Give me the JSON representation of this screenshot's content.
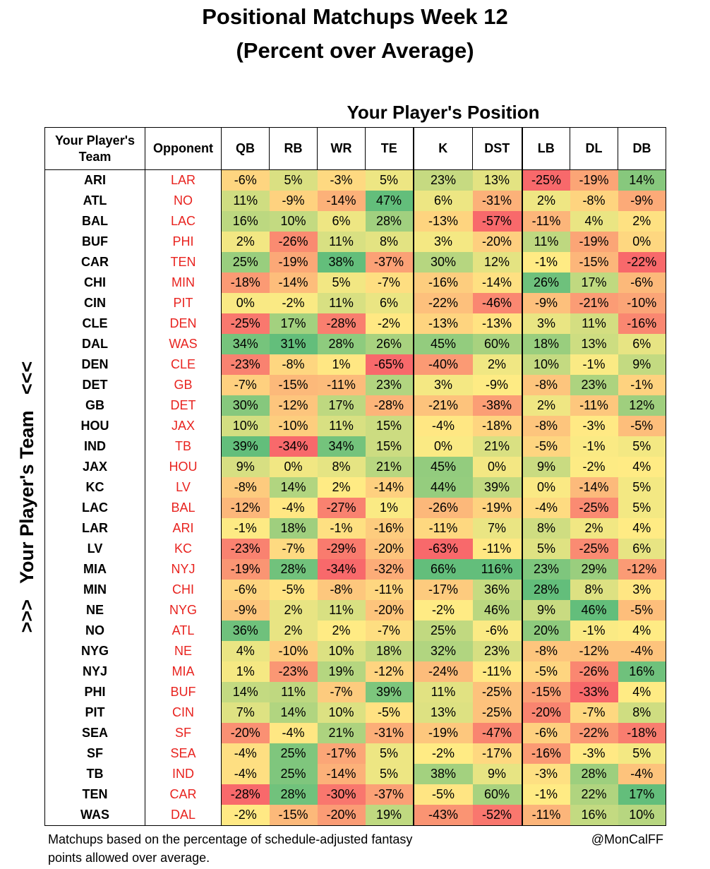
{
  "title_line1": "Positional Matchups Week 12",
  "title_line2": "(Percent over Average)",
  "position_header": "Your Player's Position",
  "side_label": ">>>   Your Player's Team   <<<",
  "footnote_line1": "Matchups based on the percentage of schedule-adjusted fantasy",
  "footnote_line2": "points allowed over average.",
  "credit": "@MonCalFF",
  "colors": {
    "low": "#f8696b",
    "mid": "#ffeb84",
    "high": "#63be7b",
    "opponent_text": "#e8231f"
  },
  "chart_data": {
    "type": "heatmap",
    "columns": [
      "Your Player's Team",
      "Opponent",
      "QB",
      "RB",
      "WR",
      "TE",
      "K",
      "DST",
      "LB",
      "DL",
      "DB"
    ],
    "positions": [
      "QB",
      "RB",
      "WR",
      "TE",
      "K",
      "DST",
      "LB",
      "DL",
      "DB"
    ],
    "rows": [
      {
        "team": "ARI",
        "opp": "LAR",
        "values": [
          -6,
          5,
          -3,
          5,
          23,
          13,
          -25,
          -19,
          14
        ]
      },
      {
        "team": "ATL",
        "opp": "NO",
        "values": [
          11,
          -9,
          -14,
          47,
          6,
          -31,
          2,
          -8,
          -9
        ]
      },
      {
        "team": "BAL",
        "opp": "LAC",
        "values": [
          16,
          10,
          6,
          28,
          -13,
          -57,
          -11,
          4,
          2
        ]
      },
      {
        "team": "BUF",
        "opp": "PHI",
        "values": [
          2,
          -26,
          11,
          8,
          3,
          -20,
          11,
          -19,
          0
        ]
      },
      {
        "team": "CAR",
        "opp": "TEN",
        "values": [
          25,
          -19,
          38,
          -37,
          30,
          12,
          -1,
          -15,
          -22
        ]
      },
      {
        "team": "CHI",
        "opp": "MIN",
        "values": [
          -18,
          -14,
          5,
          -7,
          -16,
          -14,
          26,
          17,
          -6
        ]
      },
      {
        "team": "CIN",
        "opp": "PIT",
        "values": [
          0,
          -2,
          11,
          6,
          -22,
          -46,
          -9,
          -21,
          -10
        ]
      },
      {
        "team": "CLE",
        "opp": "DEN",
        "values": [
          -25,
          17,
          -28,
          -2,
          -13,
          -13,
          3,
          11,
          -16
        ]
      },
      {
        "team": "DAL",
        "opp": "WAS",
        "values": [
          34,
          31,
          28,
          26,
          45,
          60,
          18,
          13,
          6
        ]
      },
      {
        "team": "DEN",
        "opp": "CLE",
        "values": [
          -23,
          -8,
          1,
          -65,
          -40,
          2,
          10,
          -1,
          9
        ]
      },
      {
        "team": "DET",
        "opp": "GB",
        "values": [
          -7,
          -15,
          -11,
          23,
          3,
          -9,
          -8,
          23,
          -1
        ]
      },
      {
        "team": "GB",
        "opp": "DET",
        "values": [
          30,
          -12,
          17,
          -28,
          -21,
          -38,
          2,
          -11,
          12
        ]
      },
      {
        "team": "HOU",
        "opp": "JAX",
        "values": [
          10,
          -10,
          11,
          15,
          -4,
          -18,
          -8,
          -3,
          -5
        ]
      },
      {
        "team": "IND",
        "opp": "TB",
        "values": [
          39,
          -34,
          34,
          15,
          0,
          21,
          -5,
          -1,
          5
        ]
      },
      {
        "team": "JAX",
        "opp": "HOU",
        "values": [
          9,
          0,
          8,
          21,
          45,
          0,
          9,
          -2,
          4
        ]
      },
      {
        "team": "KC",
        "opp": "LV",
        "values": [
          -8,
          14,
          2,
          -14,
          44,
          39,
          0,
          -14,
          5
        ]
      },
      {
        "team": "LAC",
        "opp": "BAL",
        "values": [
          -12,
          -4,
          -27,
          1,
          -26,
          -19,
          -4,
          -25,
          5
        ]
      },
      {
        "team": "LAR",
        "opp": "ARI",
        "values": [
          -1,
          18,
          -1,
          -16,
          -11,
          7,
          8,
          2,
          4
        ]
      },
      {
        "team": "LV",
        "opp": "KC",
        "values": [
          -23,
          -7,
          -29,
          -20,
          -63,
          -11,
          5,
          -25,
          6
        ]
      },
      {
        "team": "MIA",
        "opp": "NYJ",
        "values": [
          -19,
          28,
          -34,
          -32,
          66,
          116,
          23,
          29,
          -12
        ]
      },
      {
        "team": "MIN",
        "opp": "CHI",
        "values": [
          -6,
          -5,
          -8,
          -11,
          -17,
          36,
          28,
          8,
          3
        ]
      },
      {
        "team": "NE",
        "opp": "NYG",
        "values": [
          -9,
          2,
          11,
          -20,
          -2,
          46,
          9,
          46,
          -5
        ]
      },
      {
        "team": "NO",
        "opp": "ATL",
        "values": [
          36,
          2,
          2,
          -7,
          25,
          -6,
          20,
          -1,
          4
        ]
      },
      {
        "team": "NYG",
        "opp": "NE",
        "values": [
          4,
          -10,
          10,
          18,
          32,
          23,
          -8,
          -12,
          -4
        ]
      },
      {
        "team": "NYJ",
        "opp": "MIA",
        "values": [
          1,
          -23,
          19,
          -12,
          -24,
          -11,
          -5,
          -26,
          16
        ]
      },
      {
        "team": "PHI",
        "opp": "BUF",
        "values": [
          14,
          11,
          -7,
          39,
          11,
          -25,
          -15,
          -33,
          4
        ]
      },
      {
        "team": "PIT",
        "opp": "CIN",
        "values": [
          7,
          14,
          10,
          -5,
          13,
          -25,
          -20,
          -7,
          8
        ]
      },
      {
        "team": "SEA",
        "opp": "SF",
        "values": [
          -20,
          -4,
          21,
          -31,
          -19,
          -47,
          -6,
          -22,
          -18
        ]
      },
      {
        "team": "SF",
        "opp": "SEA",
        "values": [
          -4,
          25,
          -17,
          5,
          -2,
          -17,
          -16,
          -3,
          5
        ]
      },
      {
        "team": "TB",
        "opp": "IND",
        "values": [
          -4,
          25,
          -14,
          5,
          38,
          9,
          -3,
          28,
          -4
        ]
      },
      {
        "team": "TEN",
        "opp": "CAR",
        "values": [
          -28,
          28,
          -30,
          -37,
          -5,
          60,
          -1,
          22,
          17
        ]
      },
      {
        "team": "WAS",
        "opp": "DAL",
        "values": [
          -2,
          -15,
          -20,
          19,
          -43,
          -52,
          -11,
          16,
          10
        ]
      }
    ]
  }
}
